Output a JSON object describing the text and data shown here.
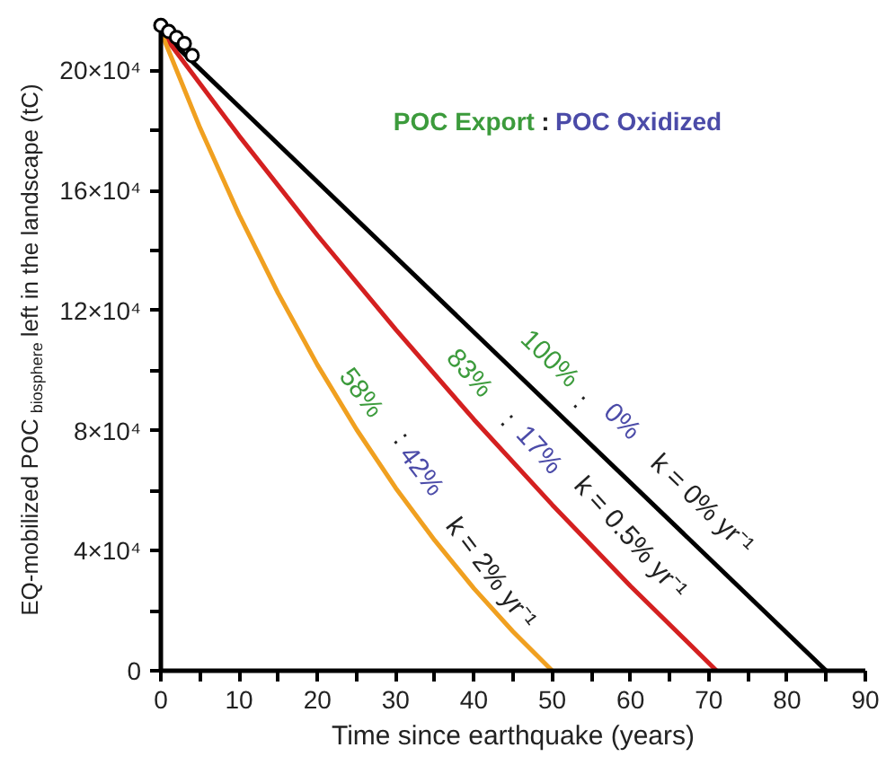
{
  "chart_data": {
    "type": "line",
    "xlabel": "Time since earthquake (years)",
    "ylabel": "EQ-mobilized POC$_{biosphere}$ left in the landscape (tC)",
    "xlim": [
      0,
      90
    ],
    "ylim": [
      0,
      216000
    ],
    "xticks": [
      0,
      {
        "value": 5,
        "label": null
      },
      10,
      {
        "value": 15,
        "label": null
      },
      20,
      {
        "value": 25,
        "label": null
      },
      30,
      {
        "value": 35,
        "label": null
      },
      40,
      {
        "value": 45,
        "label": null
      },
      50,
      {
        "value": 55,
        "label": null
      },
      60,
      {
        "value": 65,
        "label": null
      },
      70,
      {
        "value": 75,
        "label": null
      },
      80,
      {
        "value": 85,
        "label": null
      },
      90
    ],
    "yticks": [
      {
        "value": 0,
        "label": "0"
      },
      {
        "value": 20000,
        "label": null
      },
      {
        "value": 40000,
        "label": "4×10⁴"
      },
      {
        "value": 60000,
        "label": null
      },
      {
        "value": 80000,
        "label": "8×10⁴"
      },
      {
        "value": 100000,
        "label": null
      },
      {
        "value": 120000,
        "label": "12×10⁴"
      },
      {
        "value": 140000,
        "label": null
      },
      {
        "value": 160000,
        "label": "16×10⁴"
      },
      {
        "value": 180000,
        "label": null
      },
      {
        "value": 200000,
        "label": "20×10⁴"
      }
    ],
    "grid": false,
    "series": [
      {
        "color": "#000000",
        "x": [
          0,
          85
        ],
        "values": [
          213000,
          0
        ]
      },
      {
        "color": "#d42020",
        "x": [
          0,
          10,
          20,
          30,
          40,
          50,
          60,
          71
        ],
        "values": [
          213000,
          178200,
          145100,
          113700,
          83700,
          55300,
          28200,
          0
        ]
      },
      {
        "color": "#f0a020",
        "x": [
          0,
          5,
          10,
          15,
          20,
          25,
          30,
          35,
          40,
          45,
          50
        ],
        "values": [
          213000,
          180900,
          151900,
          125700,
          101900,
          80400,
          60900,
          43400,
          27400,
          13000,
          0
        ]
      },
      {
        "type": "scatter",
        "marker": "circle",
        "color": "#000000",
        "x": [
          0,
          1,
          2,
          3,
          4
        ],
        "values": [
          215000,
          213000,
          211000,
          209000,
          205000
        ]
      }
    ],
    "annotations": [
      "POC Export",
      ":",
      "POC Oxidized",
      "100%",
      ":",
      "0%",
      "k = 0% yr⁻¹",
      "83%",
      ":",
      "17%",
      "k = 0.5% yr⁻¹",
      "58%",
      ":",
      "42%",
      "k = 2% yr⁻¹"
    ]
  }
}
